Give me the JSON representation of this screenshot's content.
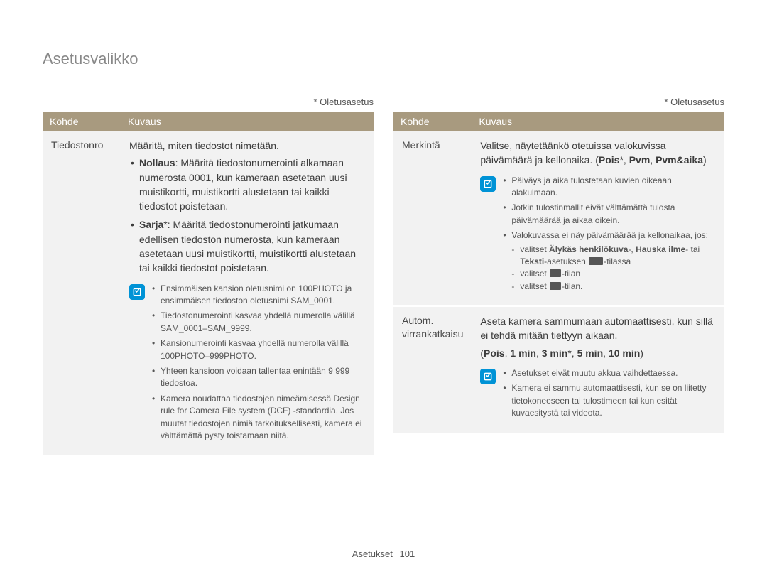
{
  "page_title": "Asetusvalikko",
  "default_label": "* Oletusasetus",
  "table_headers": {
    "kohde": "Kohde",
    "kuvaus": "Kuvaus"
  },
  "footer": {
    "section": "Asetukset",
    "page": "101"
  },
  "colors": {
    "header_bg": "#a89a7f",
    "header_text": "#ffffff",
    "row_bg": "#f2f2f2",
    "note_icon_bg": "#0093d6",
    "title_color": "#888888",
    "body_text": "#3c3c3c",
    "note_text": "#555555"
  },
  "left": {
    "rows": [
      {
        "kohde": "Tiedostonro",
        "intro": "Määritä, miten tiedostot nimetään.",
        "bullets": [
          {
            "lead_bold": "Nollaus",
            "text": ": Määritä tiedostonumerointi alkamaan numerosta 0001, kun kameraan asetetaan uusi muistikortti, muistikortti alustetaan tai kaikki tiedostot poistetaan."
          },
          {
            "lead_bold": "Sarja",
            "star": "*",
            "text": ": Määritä tiedostonumerointi jatkumaan edellisen tiedoston numerosta, kun kameraan asetetaan uusi muistikortti, muistikortti alustetaan tai kaikki tiedostot poistetaan."
          }
        ],
        "notes": [
          "Ensimmäisen kansion oletusnimi on 100PHOTO ja ensimmäisen tiedoston oletusnimi SAM_0001.",
          "Tiedostonumerointi kasvaa yhdellä numerolla välillä SAM_0001–SAM_9999.",
          "Kansionumerointi kasvaa yhdellä numerolla välillä 100PHOTO–999PHOTO.",
          "Yhteen kansioon voidaan tallentaa enintään 9 999 tiedostoa.",
          "Kamera noudattaa tiedostojen nimeämisessä Design rule for Camera File system (DCF) -standardia. Jos muutat tiedostojen nimiä tarkoituksellisesti, kamera ei välttämättä pysty toistamaan niitä."
        ]
      }
    ]
  },
  "right": {
    "rows": [
      {
        "kohde": "Merkintä",
        "intro_parts": {
          "a": "Valitse, näytetäänkö otetuissa valokuvissa päivämäärä ja kellonaika. (",
          "b_bold": "Pois",
          "star": "*",
          "c": ", ",
          "d_bold": "Pvm",
          "e": ", ",
          "f_bold": "Pvm&aika",
          "g": ")"
        },
        "notes": [
          "Päiväys ja aika tulostetaan kuvien oikeaan alakulmaan.",
          "Jotkin tulostinmallit eivät välttämättä tulosta päivämäärää ja aikaa oikein.",
          "Valokuvassa ei näy päivämäärää ja kellonaikaa, jos:"
        ],
        "sub_dashes": [
          {
            "pre": "valitset ",
            "b1": "Älykäs henkilökuva",
            "mid": "-, ",
            "b2": "Hauska ilme",
            "mid2": "- tai ",
            "b3": "Teksti",
            "post": "-asetuksen ",
            "icon": true,
            "tail": "-tilassa"
          },
          {
            "pre": "valitset ",
            "icon": true,
            "tail": "-tilan"
          },
          {
            "pre": "valitset ",
            "icon": true,
            "tail": "-tilan."
          }
        ]
      },
      {
        "kohde": "Autom. virrankatkaisu",
        "intro": "Aseta kamera sammumaan automaattisesti, kun sillä ei tehdä mitään tiettyyn aikaan.",
        "options_line": {
          "a": "(",
          "parts": [
            "Pois",
            "1 min",
            "3 min",
            "5 min",
            "10 min"
          ],
          "star_on": "3 min",
          "z": ")"
        },
        "notes": [
          "Asetukset eivät muutu akkua vaihdettaessa.",
          "Kamera ei sammu automaattisesti, kun se on liitetty tietokoneeseen tai tulostimeen tai kun esität kuvaesitystä tai videota."
        ]
      }
    ]
  }
}
